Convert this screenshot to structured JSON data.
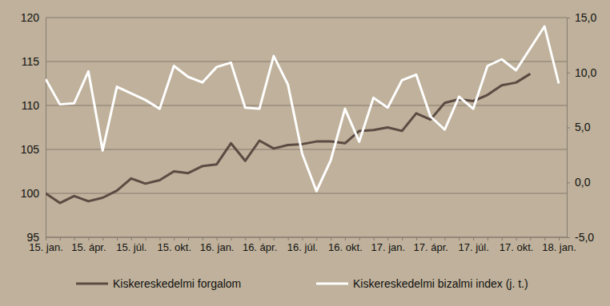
{
  "chart_data": {
    "type": "line",
    "categories": [
      "15. jan.",
      null,
      null,
      "15. ápr.",
      null,
      null,
      "15. júl.",
      null,
      null,
      "15. okt.",
      null,
      null,
      "16. jan.",
      null,
      null,
      "16. ápr.",
      null,
      null,
      "16. júl.",
      null,
      null,
      "16. okt.",
      null,
      null,
      "17. jan.",
      null,
      null,
      "17. ápr.",
      null,
      null,
      "17. júl.",
      null,
      null,
      "17. okt.",
      null,
      null,
      "18. jan."
    ],
    "series": [
      {
        "name": "Kiskereskedelmi forgalom",
        "color": "#5b4b43",
        "values": [
          100.0,
          98.9,
          99.7,
          99.1,
          99.5,
          100.3,
          101.7,
          101.1,
          101.5,
          102.5,
          102.3,
          103.1,
          103.3,
          105.7,
          103.7,
          106.0,
          105.1,
          105.5,
          105.6,
          105.9,
          105.9,
          105.7,
          107.1,
          107.2,
          107.5,
          107.1,
          109.1,
          108.4,
          110.3,
          110.7,
          110.5,
          111.2,
          112.3,
          112.6,
          113.6,
          null,
          null
        ]
      },
      {
        "name": "Kiskereskedelmi bizalmi index (j. t.)",
        "color": "#ffffff",
        "axis": "y2",
        "values": [
          9.4,
          7.1,
          7.2,
          10.1,
          2.9,
          8.7,
          8.1,
          7.5,
          6.7,
          10.6,
          9.6,
          9.1,
          10.5,
          10.9,
          6.8,
          6.7,
          11.5,
          8.9,
          2.6,
          -0.8,
          2.0,
          6.7,
          3.7,
          7.7,
          6.8,
          9.3,
          9.8,
          6.0,
          4.8,
          7.8,
          6.7,
          10.6,
          11.2,
          10.2,
          12.2,
          14.2,
          9.0
        ]
      }
    ],
    "ylim": [
      95,
      120
    ],
    "yticks": [
      95,
      100,
      105,
      110,
      115,
      120
    ],
    "y2lim": [
      -5,
      15
    ],
    "y2ticks": [
      {
        "value": -5,
        "label": "-5,0"
      },
      {
        "value": 0,
        "label": "0,0"
      },
      {
        "value": 5,
        "label": "5,0"
      },
      {
        "value": 10,
        "label": "10,0"
      },
      {
        "value": 15,
        "label": "15,0"
      }
    ],
    "grid": true,
    "legend": "bottom"
  }
}
